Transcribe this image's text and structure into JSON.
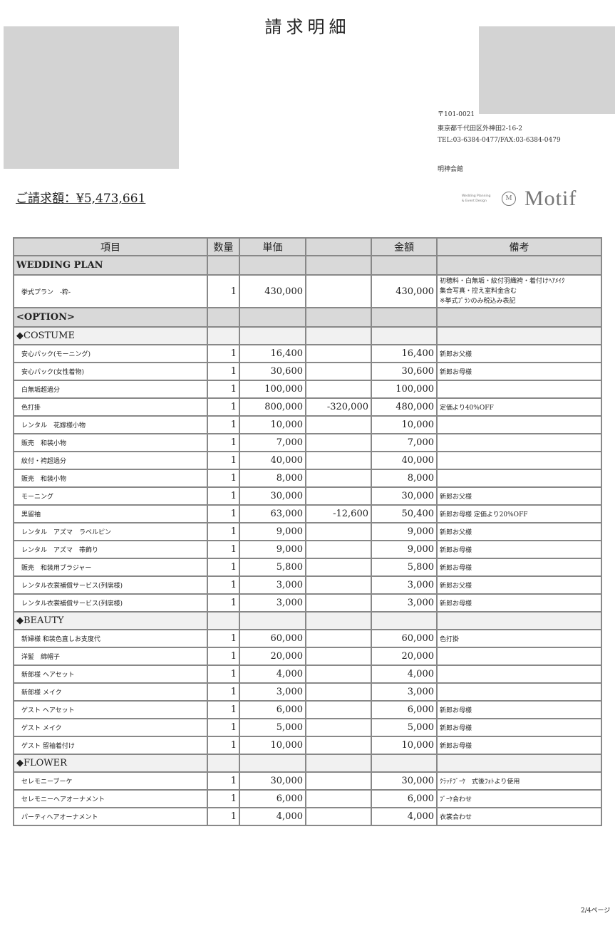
{
  "title": "請求明細",
  "total": "ご請求額：¥5,473,661",
  "address": {
    "postal": "〒101-0021",
    "street": "東京都千代田区外神田2-16-2",
    "tel_fax": "TEL:03-6384-0477/FAX:03-6384-0479",
    "venue": "明神会館"
  },
  "logo": {
    "tagline1": "Wedding Planning",
    "tagline2": "& Event Design",
    "mark": "M",
    "word": "Motif"
  },
  "table": {
    "headers": [
      "項目",
      "数量",
      "単価",
      "",
      "金額",
      "備考"
    ],
    "rows": [
      {
        "type": "sec",
        "item": "WEDDING PLAN"
      },
      {
        "type": "plan",
        "item": "挙式プラン　-粋-",
        "qty": "1",
        "unit": "430,000",
        "disc": "",
        "amount": "430,000",
        "remark": "初穂料・白無垢・紋付羽織袴・着付けﾍｱﾒｲｸ\n集合写真・控え室料金含む\n※挙式ﾌﾟﾗﾝのみ税込み表記"
      },
      {
        "type": "sec",
        "item": "<OPTION>"
      },
      {
        "type": "sub",
        "item": "◆COSTUME"
      },
      {
        "item": "安心パック(モーニング)",
        "qty": "1",
        "unit": "16,400",
        "disc": "",
        "amount": "16,400",
        "remark": "新郎お父様"
      },
      {
        "item": "安心パック(女性着物)",
        "qty": "1",
        "unit": "30,600",
        "disc": "",
        "amount": "30,600",
        "remark": "新郎お母様"
      },
      {
        "item": "白無垢超過分",
        "qty": "1",
        "unit": "100,000",
        "disc": "",
        "amount": "100,000",
        "remark": ""
      },
      {
        "item": "色打掛",
        "qty": "1",
        "unit": "800,000",
        "disc": "-320,000",
        "amount": "480,000",
        "remark": "定価より40%OFF"
      },
      {
        "item": "レンタル　花嫁様小物",
        "qty": "1",
        "unit": "10,000",
        "disc": "",
        "amount": "10,000",
        "remark": ""
      },
      {
        "item": "販売　和装小物",
        "qty": "1",
        "unit": "7,000",
        "disc": "",
        "amount": "7,000",
        "remark": ""
      },
      {
        "item": "紋付・袴超過分",
        "qty": "1",
        "unit": "40,000",
        "disc": "",
        "amount": "40,000",
        "remark": ""
      },
      {
        "item": "販売　和装小物",
        "qty": "1",
        "unit": "8,000",
        "disc": "",
        "amount": "8,000",
        "remark": ""
      },
      {
        "item": "モーニング",
        "qty": "1",
        "unit": "30,000",
        "disc": "",
        "amount": "30,000",
        "remark": "新郎お父様"
      },
      {
        "item": "黒留袖",
        "qty": "1",
        "unit": "63,000",
        "disc": "-12,600",
        "amount": "50,400",
        "remark": "新郎お母様 定価より20%OFF"
      },
      {
        "item": "レンタル　アズマ　ラベルピン",
        "qty": "1",
        "unit": "9,000",
        "disc": "",
        "amount": "9,000",
        "remark": "新郎お父様"
      },
      {
        "item": "レンタル　アズマ　帯飾り",
        "qty": "1",
        "unit": "9,000",
        "disc": "",
        "amount": "9,000",
        "remark": "新郎お母様"
      },
      {
        "item": "販売　和装用ブラジャー",
        "qty": "1",
        "unit": "5,800",
        "disc": "",
        "amount": "5,800",
        "remark": "新郎お母様"
      },
      {
        "item": "レンタル衣裳補償サービス(列席様)",
        "qty": "1",
        "unit": "3,000",
        "disc": "",
        "amount": "3,000",
        "remark": "新郎お父様"
      },
      {
        "item": "レンタル衣裳補償サービス(列席様)",
        "qty": "1",
        "unit": "3,000",
        "disc": "",
        "amount": "3,000",
        "remark": "新郎お母様"
      },
      {
        "type": "sub",
        "item": "◆BEAUTY"
      },
      {
        "item": "新婦様 和装色直しお支度代",
        "qty": "1",
        "unit": "60,000",
        "disc": "",
        "amount": "60,000",
        "remark": "色打掛"
      },
      {
        "item": "洋髪　綿帽子",
        "qty": "1",
        "unit": "20,000",
        "disc": "",
        "amount": "20,000",
        "remark": ""
      },
      {
        "item": "新郎様 ヘアセット",
        "qty": "1",
        "unit": "4,000",
        "disc": "",
        "amount": "4,000",
        "remark": ""
      },
      {
        "item": "新郎様 メイク",
        "qty": "1",
        "unit": "3,000",
        "disc": "",
        "amount": "3,000",
        "remark": ""
      },
      {
        "item": "ゲスト ヘアセット",
        "qty": "1",
        "unit": "6,000",
        "disc": "",
        "amount": "6,000",
        "remark": "新郎お母様"
      },
      {
        "item": "ゲスト メイク",
        "qty": "1",
        "unit": "5,000",
        "disc": "",
        "amount": "5,000",
        "remark": "新郎お母様"
      },
      {
        "item": "ゲスト 留袖着付け",
        "qty": "1",
        "unit": "10,000",
        "disc": "",
        "amount": "10,000",
        "remark": "新郎お母様"
      },
      {
        "type": "sub",
        "item": "◆FLOWER"
      },
      {
        "item": "セレモニーブーケ",
        "qty": "1",
        "unit": "30,000",
        "disc": "",
        "amount": "30,000",
        "remark": "ｸﾗｯﾁﾌﾞｰｹ　式後ﾌｫﾄより使用"
      },
      {
        "item": "セレモニーヘアオーナメント",
        "qty": "1",
        "unit": "6,000",
        "disc": "",
        "amount": "6,000",
        "remark": "ﾌﾞｰｹ合わせ"
      },
      {
        "item": "パーティヘアオーナメント",
        "qty": "1",
        "unit": "4,000",
        "disc": "",
        "amount": "4,000",
        "remark": "衣裳合わせ"
      }
    ]
  },
  "page_number": "2/4ページ"
}
